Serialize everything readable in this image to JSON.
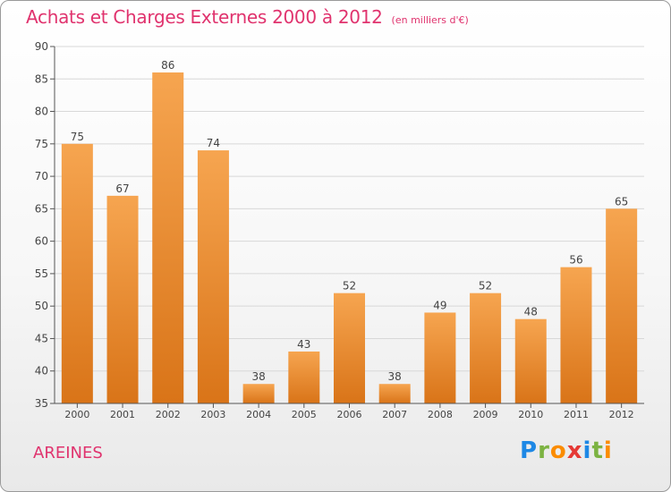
{
  "title": {
    "main": "Achats et Charges Externes 2000 à 2012",
    "unit": "(en milliers d'€)"
  },
  "commune": "AREINES",
  "logo": {
    "letters": [
      "P",
      "r",
      "o",
      "x",
      "i",
      "t",
      "i"
    ],
    "colors": [
      "#1e88e5",
      "#7cb342",
      "#fb8c00",
      "#e53935",
      "#1e88e5",
      "#7cb342",
      "#fb8c00"
    ]
  },
  "colors": {
    "bar_light": "#f6a550",
    "bar_dark": "#d97418",
    "title": "#e0336e",
    "grid": "#d8d8d8",
    "axis": "#555555"
  },
  "chart_data": {
    "type": "bar",
    "title": "Achats et Charges Externes 2000 à 2012",
    "categories": [
      "2000",
      "2001",
      "2002",
      "2003",
      "2004",
      "2005",
      "2006",
      "2007",
      "2008",
      "2009",
      "2010",
      "2011",
      "2012"
    ],
    "values": [
      75,
      67,
      86,
      74,
      38,
      43,
      52,
      38,
      49,
      52,
      48,
      56,
      65
    ],
    "ylim": [
      35,
      90
    ],
    "yticks": [
      35,
      40,
      45,
      50,
      55,
      60,
      65,
      70,
      75,
      80,
      85,
      90
    ],
    "grid": true,
    "data_labels": true
  }
}
